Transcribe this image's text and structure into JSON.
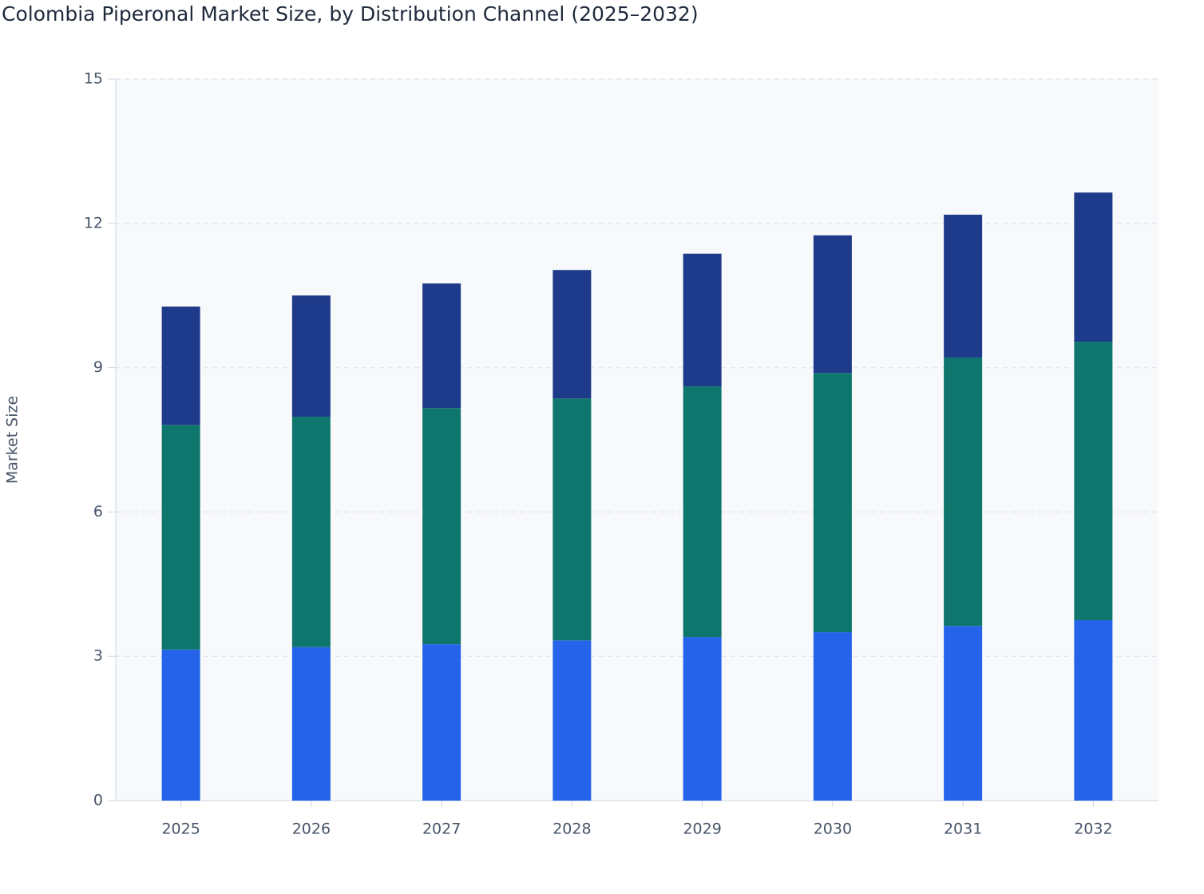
{
  "chart_data": {
    "type": "stacked_bar",
    "title": "Colombia Piperonal Market Size, by Distribution Channel (2025–2032)",
    "y_label": "Market Size",
    "categories": [
      "2025",
      "2026",
      "2027",
      "2028",
      "2029",
      "2030",
      "2031",
      "2032"
    ],
    "series": [
      {
        "color": "#2563eb",
        "values": [
          3.14,
          3.19,
          3.25,
          3.33,
          3.4,
          3.5,
          3.63,
          3.75
        ]
      },
      {
        "color": "#0f766e",
        "values": [
          4.67,
          4.79,
          4.91,
          5.03,
          5.21,
          5.39,
          5.58,
          5.79
        ]
      },
      {
        "color": "#1e3a8a",
        "values": [
          2.46,
          2.52,
          2.59,
          2.67,
          2.76,
          2.86,
          2.97,
          3.1
        ]
      }
    ],
    "ylim": [
      0,
      15
    ],
    "yticks": [
      0,
      3,
      6,
      9,
      12,
      15
    ],
    "grid": true
  }
}
